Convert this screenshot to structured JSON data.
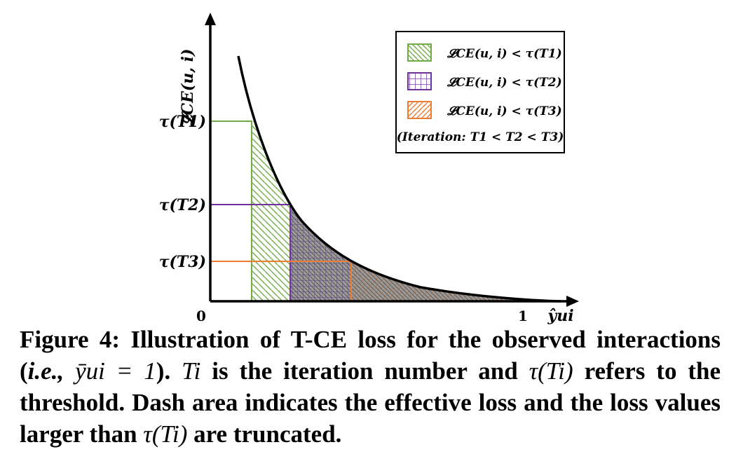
{
  "figure": {
    "y_axis_label": "𝓛CE(u, i)",
    "x_axis_label": "ŷui",
    "x_tick_start": "0",
    "x_tick_end": "1",
    "thresholds": [
      {
        "label": "τ(T1)",
        "color": "#70ad47"
      },
      {
        "label": "τ(T2)",
        "color": "#7030a0"
      },
      {
        "label": "τ(T3)",
        "color": "#ed7d31"
      }
    ],
    "legend": {
      "entries": [
        {
          "text": "𝓛CE(u, i) < τ(T1)",
          "pattern": "diagonal-back",
          "color": "#70ad47"
        },
        {
          "text": "𝓛CE(u, i) < τ(T2)",
          "pattern": "grid",
          "color": "#7030a0"
        },
        {
          "text": "𝓛CE(u, i) < τ(T3)",
          "pattern": "diagonal-forward",
          "color": "#ed7d31"
        }
      ],
      "note": "(Iteration: T1 < T2 < T3)"
    }
  },
  "caption": {
    "lead": "Figure 4: Illustration of T-CE loss for the observed interactions (",
    "ie": "i.e.,",
    "ybar": "ȳui = 1",
    "after_ybar": "). ",
    "ti": "Ti",
    "mid": " is the iteration number and ",
    "tau_ti": "τ(Ti)",
    "mid2": " refers to the threshold. Dash area indicates the effective loss and the loss values larger than ",
    "tau_ti_2": "τ(Ti)",
    "tail": " are truncated."
  }
}
